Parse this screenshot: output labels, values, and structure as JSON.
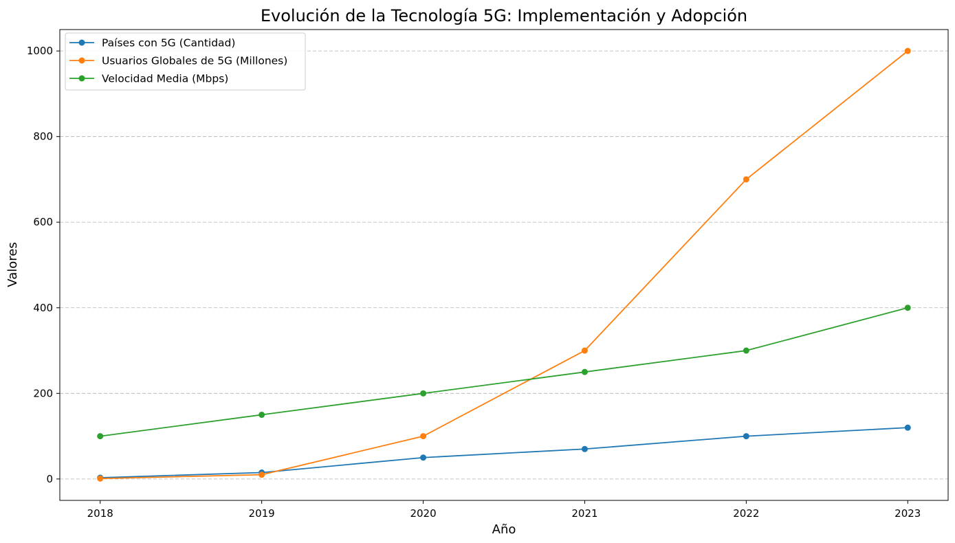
{
  "chart_data": {
    "type": "line",
    "title": "Evolución de la Tecnología 5G: Implementación y Adopción",
    "xlabel": "Año",
    "ylabel": "Valores",
    "x": [
      2018,
      2019,
      2020,
      2021,
      2022,
      2023
    ],
    "x_tick_labels": [
      "2018",
      "2019",
      "2020",
      "2021",
      "2022",
      "2023"
    ],
    "xlim": [
      2017.75,
      2023.25
    ],
    "ylim": [
      -50,
      1050
    ],
    "y_ticks": [
      0,
      200,
      400,
      600,
      800,
      1000
    ],
    "y_tick_labels": [
      "0",
      "200",
      "400",
      "600",
      "800",
      "1000"
    ],
    "grid": "y-dashed",
    "legend_position": "top-left",
    "series": [
      {
        "name": "Países con 5G (Cantidad)",
        "color": "#1f77b4",
        "values": [
          3,
          15,
          50,
          70,
          100,
          120
        ]
      },
      {
        "name": "Usuarios Globales de 5G (Millones)",
        "color": "#ff7f0e",
        "values": [
          1,
          10,
          100,
          300,
          700,
          1000
        ]
      },
      {
        "name": "Velocidad Media (Mbps)",
        "color": "#2ca02c",
        "values": [
          100,
          150,
          200,
          250,
          300,
          400
        ]
      }
    ]
  }
}
